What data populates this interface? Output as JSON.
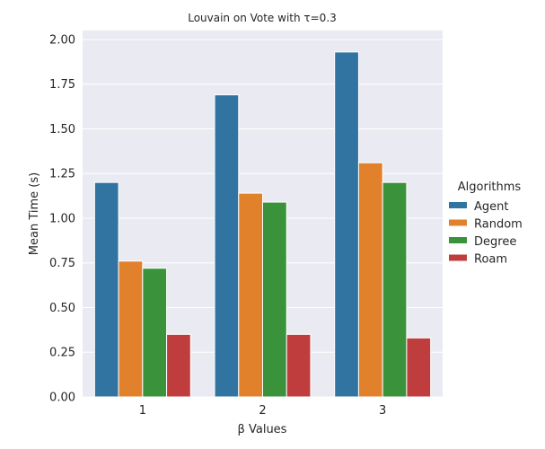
{
  "chart_data": {
    "type": "bar",
    "title": "Louvain on Vote with τ=0.3",
    "xlabel": "β Values",
    "ylabel": "Mean Time (s)",
    "categories": [
      "1",
      "2",
      "3"
    ],
    "ylim": [
      0,
      2.05
    ],
    "yticks": [
      "0.00",
      "0.25",
      "0.50",
      "0.75",
      "1.00",
      "1.25",
      "1.50",
      "1.75",
      "2.00"
    ],
    "grid": true,
    "legend_title": "Algorithms",
    "legend_position": "right",
    "series": [
      {
        "name": "Agent",
        "color": "#3274a1",
        "values": [
          1.2,
          1.69,
          1.93
        ]
      },
      {
        "name": "Random",
        "color": "#e1812c",
        "values": [
          0.76,
          1.14,
          1.31
        ]
      },
      {
        "name": "Degree",
        "color": "#3a923a",
        "values": [
          0.72,
          1.09,
          1.2
        ]
      },
      {
        "name": "Roam",
        "color": "#c03d3e",
        "values": [
          0.35,
          0.35,
          0.33
        ]
      }
    ]
  }
}
